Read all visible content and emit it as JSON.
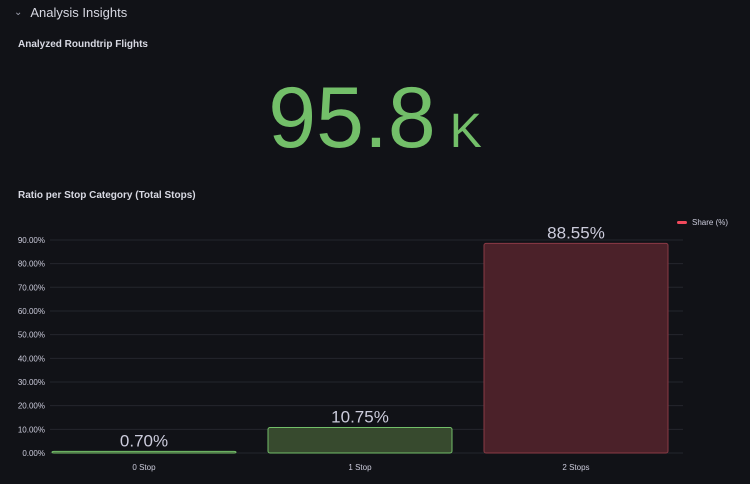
{
  "row": {
    "title": "Analysis Insights"
  },
  "stat_panel": {
    "title": "Analyzed Roundtrip Flights",
    "value": "95.8",
    "unit": "K"
  },
  "bar_panel": {
    "title": "Ratio per Stop Category (Total Stops)"
  },
  "colors": {
    "green": "#73bf69",
    "red": "#f2495c",
    "bg": "#111217"
  },
  "chart_data": {
    "type": "bar",
    "title": "Ratio per Stop Category (Total Stops)",
    "categories": [
      "0 Stop",
      "1 Stop",
      "2 Stops"
    ],
    "series": [
      {
        "name": "Share (%)",
        "values": [
          0.7,
          10.75,
          88.55
        ]
      }
    ],
    "value_labels": [
      "0.70%",
      "10.75%",
      "88.55%"
    ],
    "bar_colors": [
      "green",
      "green",
      "red"
    ],
    "yticks": [
      "0.00%",
      "10.00%",
      "20.00%",
      "30.00%",
      "40.00%",
      "50.00%",
      "60.00%",
      "70.00%",
      "80.00%",
      "90.00%"
    ],
    "ylim": [
      0,
      90
    ],
    "legend": "top-right",
    "grid": true
  }
}
